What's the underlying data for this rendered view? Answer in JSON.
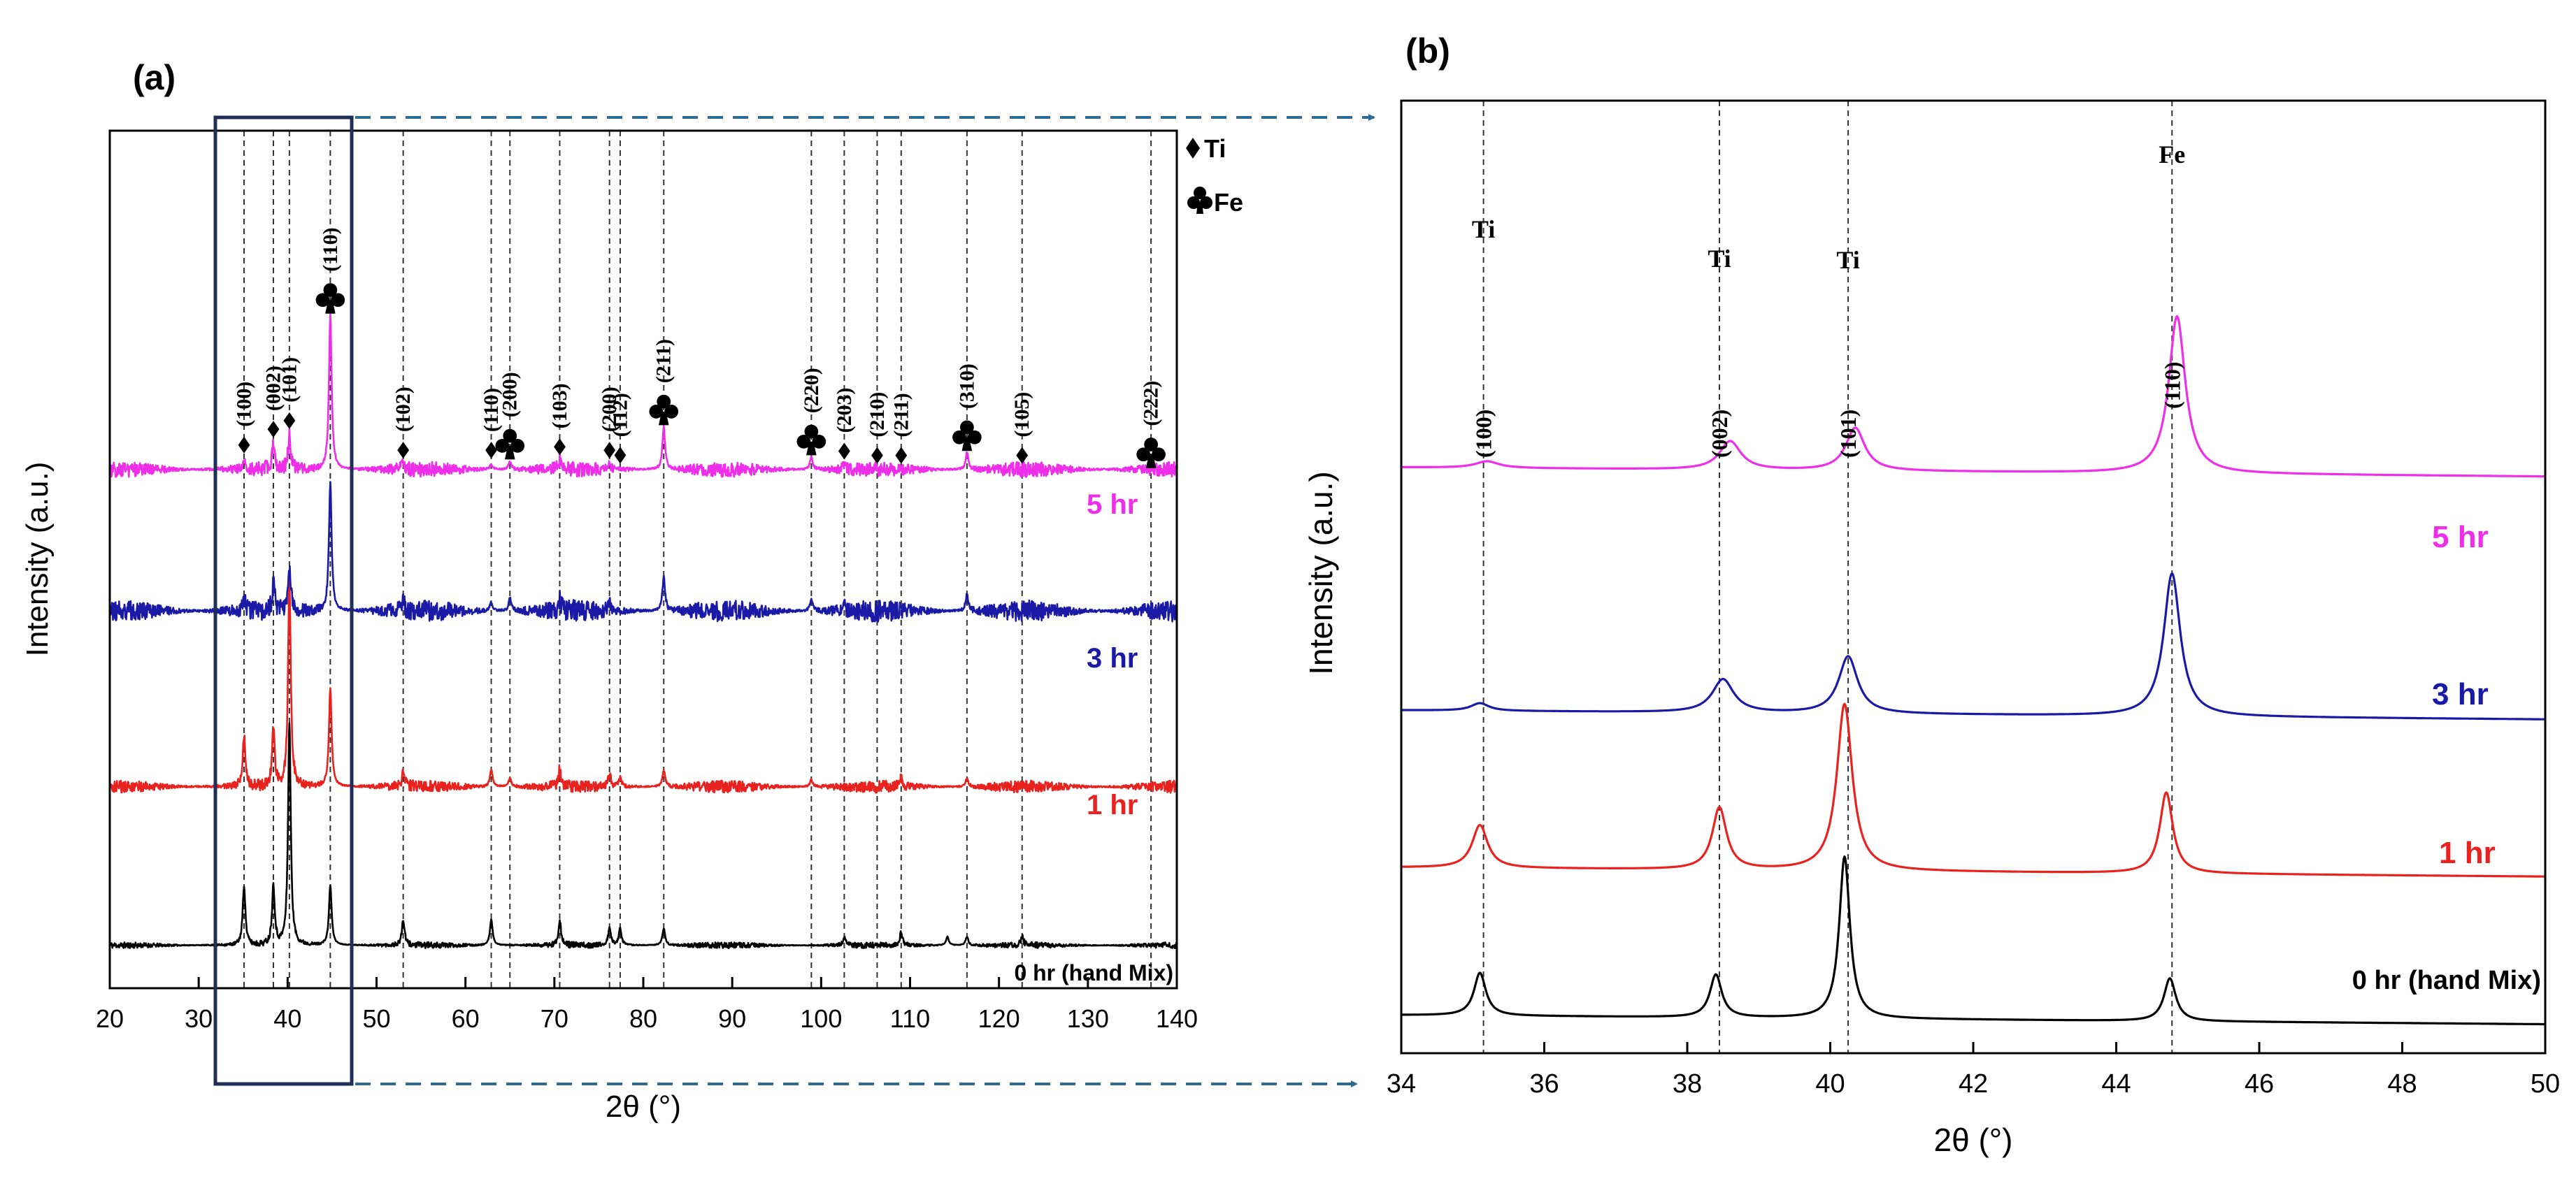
{
  "panels": [
    {
      "id": "a",
      "label": "(a)",
      "xlabel": "2θ (°)",
      "ylabel": "Intensity (a.u.)",
      "legend": {
        "ti_label": "Ti",
        "fe_label": "Fe",
        "ti_icon": "diamond-icon",
        "fe_icon": "club-icon"
      }
    },
    {
      "id": "b",
      "label": "(b)",
      "xlabel": "2θ (°)",
      "ylabel": "Intensity (a.u.)"
    }
  ],
  "colors": {
    "0hr": "#000000",
    "1hr": "#e8231f",
    "3hr": "#1a1aa6",
    "5hr": "#ee2ee8",
    "frame": "#1f2f5a",
    "arrow": "#2e6b93"
  },
  "chart_data": [
    {
      "panel": "a",
      "type": "line",
      "xlim": [
        20,
        140
      ],
      "xticks": [
        20,
        30,
        40,
        50,
        60,
        70,
        80,
        90,
        100,
        110,
        120,
        130,
        140
      ],
      "grid": false,
      "y_axis_values_shown": false,
      "reference_lines_x": [
        35.1,
        38.4,
        40.2,
        44.8,
        53.0,
        62.9,
        65.0,
        70.6,
        76.2,
        77.4,
        82.3,
        98.9,
        102.6,
        106.3,
        109.0,
        116.4,
        122.6,
        137.1
      ],
      "peak_annotations": [
        {
          "x": 35.1,
          "hkl": "(100)",
          "phase": "Ti"
        },
        {
          "x": 38.4,
          "hkl": "(002)",
          "phase": "Ti"
        },
        {
          "x": 40.2,
          "hkl": "(101)",
          "phase": "Ti"
        },
        {
          "x": 44.8,
          "hkl": "(110)",
          "phase": "Fe"
        },
        {
          "x": 53.0,
          "hkl": "(102)",
          "phase": "Ti"
        },
        {
          "x": 62.9,
          "hkl": "(110)",
          "phase": "Ti"
        },
        {
          "x": 65.0,
          "hkl": "(200)",
          "phase": "Fe"
        },
        {
          "x": 70.6,
          "hkl": "(103)",
          "phase": "Ti"
        },
        {
          "x": 76.2,
          "hkl": "(200)",
          "phase": "Ti"
        },
        {
          "x": 77.4,
          "hkl": "(112)",
          "phase": "Ti"
        },
        {
          "x": 82.3,
          "hkl": "(211)",
          "phase": "Fe"
        },
        {
          "x": 98.9,
          "hkl": "(220)",
          "phase": "Fe"
        },
        {
          "x": 102.6,
          "hkl": "(203)",
          "phase": "Ti"
        },
        {
          "x": 106.3,
          "hkl": "(210)",
          "phase": "Ti"
        },
        {
          "x": 109.0,
          "hkl": "(211)",
          "phase": "Ti"
        },
        {
          "x": 116.4,
          "hkl": "(310)",
          "phase": "Fe"
        },
        {
          "x": 122.6,
          "hkl": "(105)",
          "phase": "Ti"
        },
        {
          "x": 137.1,
          "hkl": "(222)",
          "phase": "Fe"
        }
      ],
      "series": [
        {
          "name": "0 hr (hand Mix)",
          "color": "#000000",
          "baseline": 0.05,
          "noise": 0.002,
          "peaks": [
            [
              35.1,
              0.07
            ],
            [
              38.4,
              0.07
            ],
            [
              40.2,
              0.26
            ],
            [
              44.8,
              0.07
            ],
            [
              53.0,
              0.03
            ],
            [
              62.9,
              0.03
            ],
            [
              70.6,
              0.03
            ],
            [
              76.2,
              0.02
            ],
            [
              77.4,
              0.02
            ],
            [
              82.3,
              0.02
            ],
            [
              102.6,
              0.01
            ],
            [
              109.0,
              0.015
            ],
            [
              114.2,
              0.01
            ],
            [
              116.4,
              0.01
            ],
            [
              122.6,
              0.01
            ]
          ]
        },
        {
          "name": "1 hr",
          "color": "#e8231f",
          "baseline": 0.235,
          "noise": 0.004,
          "peaks": [
            [
              35.1,
              0.06
            ],
            [
              38.4,
              0.065
            ],
            [
              40.2,
              0.245
            ],
            [
              44.8,
              0.115
            ],
            [
              53.0,
              0.02
            ],
            [
              62.9,
              0.02
            ],
            [
              65.0,
              0.01
            ],
            [
              70.6,
              0.02
            ],
            [
              76.2,
              0.015
            ],
            [
              77.4,
              0.01
            ],
            [
              82.3,
              0.02
            ],
            [
              98.9,
              0.008
            ],
            [
              109.0,
              0.01
            ],
            [
              116.4,
              0.01
            ]
          ]
        },
        {
          "name": "3 hr",
          "color": "#1a1aa6",
          "baseline": 0.44,
          "noise": 0.007,
          "peaks": [
            [
              35.1,
              0.015
            ],
            [
              38.4,
              0.03
            ],
            [
              40.2,
              0.05
            ],
            [
              44.8,
              0.15
            ],
            [
              53.0,
              0.01
            ],
            [
              62.9,
              0.01
            ],
            [
              65.0,
              0.015
            ],
            [
              70.6,
              0.015
            ],
            [
              76.2,
              0.01
            ],
            [
              82.3,
              0.04
            ],
            [
              98.9,
              0.015
            ],
            [
              102.6,
              0.006
            ],
            [
              116.4,
              0.02
            ]
          ]
        },
        {
          "name": "5 hr",
          "color": "#ee2ee8",
          "baseline": 0.605,
          "noise": 0.005,
          "peaks": [
            [
              35.1,
              0.012
            ],
            [
              38.4,
              0.03
            ],
            [
              40.2,
              0.04
            ],
            [
              44.8,
              0.18
            ],
            [
              53.0,
              0.006
            ],
            [
              62.9,
              0.006
            ],
            [
              65.0,
              0.01
            ],
            [
              70.6,
              0.01
            ],
            [
              76.2,
              0.006
            ],
            [
              82.3,
              0.05
            ],
            [
              98.9,
              0.015
            ],
            [
              102.6,
              0.005
            ],
            [
              116.4,
              0.02
            ]
          ]
        }
      ]
    },
    {
      "panel": "b",
      "type": "line",
      "xlim": [
        34,
        50
      ],
      "xticks": [
        34,
        36,
        38,
        40,
        42,
        44,
        46,
        48,
        50
      ],
      "grid": false,
      "y_axis_values_shown": false,
      "reference_lines_x": [
        35.15,
        38.45,
        40.25,
        44.78
      ],
      "peak_annotations": [
        {
          "x": 35.15,
          "hkl": "(100)",
          "phase": "Ti"
        },
        {
          "x": 38.45,
          "hkl": "(002)",
          "phase": "Ti"
        },
        {
          "x": 40.25,
          "hkl": "(101)",
          "phase": "Ti"
        },
        {
          "x": 44.78,
          "hkl": "(110)",
          "phase": "Fe"
        }
      ],
      "series": [
        {
          "name": "0 hr (hand Mix)",
          "color": "#000000",
          "baseline": 0.04,
          "peaks": [
            [
              35.1,
              0.045,
              0.1
            ],
            [
              38.4,
              0.045,
              0.1
            ],
            [
              40.2,
              0.17,
              0.09
            ],
            [
              44.75,
              0.045,
              0.1
            ]
          ]
        },
        {
          "name": "1 hr",
          "color": "#e8231f",
          "baseline": 0.195,
          "peaks": [
            [
              35.1,
              0.045,
              0.13
            ],
            [
              38.45,
              0.065,
              0.12
            ],
            [
              40.2,
              0.175,
              0.13
            ],
            [
              44.7,
              0.085,
              0.11
            ]
          ]
        },
        {
          "name": "3 hr",
          "color": "#1a1aa6",
          "baseline": 0.36,
          "peaks": [
            [
              35.1,
              0.008,
              0.15
            ],
            [
              38.5,
              0.035,
              0.18
            ],
            [
              40.25,
              0.06,
              0.16
            ],
            [
              44.78,
              0.15,
              0.14
            ]
          ]
        },
        {
          "name": "5 hr",
          "color": "#ee2ee8",
          "baseline": 0.615,
          "peaks": [
            [
              35.2,
              0.007,
              0.2
            ],
            [
              38.6,
              0.03,
              0.18
            ],
            [
              40.35,
              0.045,
              0.16
            ],
            [
              44.85,
              0.165,
              0.14
            ]
          ]
        }
      ]
    }
  ]
}
